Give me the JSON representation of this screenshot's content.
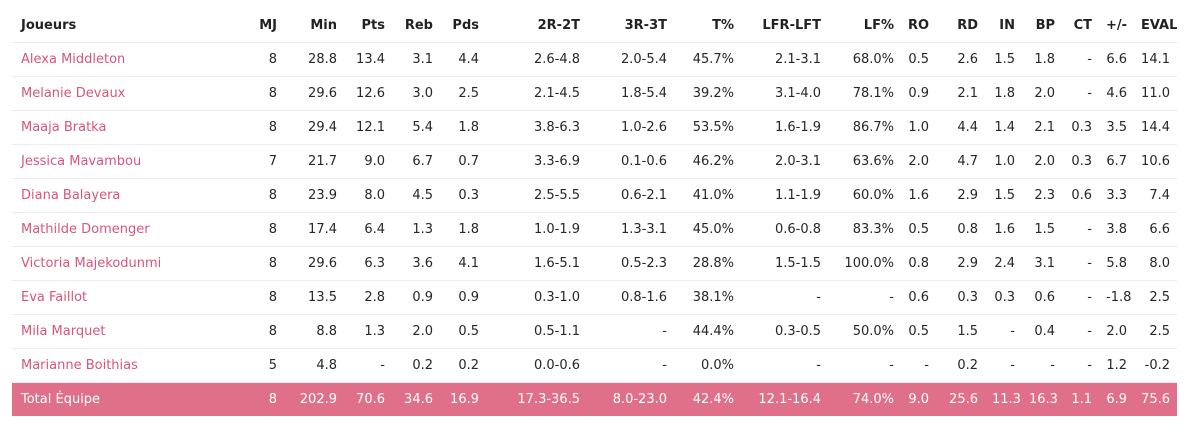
{
  "columns": [
    "Joueurs",
    "MJ",
    "Min",
    "Pts",
    "Reb",
    "Pds",
    "2R-2T",
    "3R-3T",
    "T%",
    "LFR-LFT",
    "LF%",
    "RO",
    "RD",
    "IN",
    "BP",
    "CT",
    "+/-",
    "EVAL"
  ],
  "rows": [
    [
      "Alexa Middleton",
      "8",
      "28.8",
      "13.4",
      "3.1",
      "4.4",
      "2.6-4.8",
      "2.0-5.4",
      "45.7%",
      "2.1-3.1",
      "68.0%",
      "0.5",
      "2.6",
      "1.5",
      "1.8",
      "-",
      "6.6",
      "14.1"
    ],
    [
      "Melanie Devaux",
      "8",
      "29.6",
      "12.6",
      "3.0",
      "2.5",
      "2.1-4.5",
      "1.8-5.4",
      "39.2%",
      "3.1-4.0",
      "78.1%",
      "0.9",
      "2.1",
      "1.8",
      "2.0",
      "-",
      "4.6",
      "11.0"
    ],
    [
      "Maaja Bratka",
      "8",
      "29.4",
      "12.1",
      "5.4",
      "1.8",
      "3.8-6.3",
      "1.0-2.6",
      "53.5%",
      "1.6-1.9",
      "86.7%",
      "1.0",
      "4.4",
      "1.4",
      "2.1",
      "0.3",
      "3.5",
      "14.4"
    ],
    [
      "Jessica Mavambou",
      "7",
      "21.7",
      "9.0",
      "6.7",
      "0.7",
      "3.3-6.9",
      "0.1-0.6",
      "46.2%",
      "2.0-3.1",
      "63.6%",
      "2.0",
      "4.7",
      "1.0",
      "2.0",
      "0.3",
      "6.7",
      "10.6"
    ],
    [
      "Diana Balayera",
      "8",
      "23.9",
      "8.0",
      "4.5",
      "0.3",
      "2.5-5.5",
      "0.6-2.1",
      "41.0%",
      "1.1-1.9",
      "60.0%",
      "1.6",
      "2.9",
      "1.5",
      "2.3",
      "0.6",
      "3.3",
      "7.4"
    ],
    [
      "Mathilde Domenger",
      "8",
      "17.4",
      "6.4",
      "1.3",
      "1.8",
      "1.0-1.9",
      "1.3-3.1",
      "45.0%",
      "0.6-0.8",
      "83.3%",
      "0.5",
      "0.8",
      "1.6",
      "1.5",
      "-",
      "3.8",
      "6.6"
    ],
    [
      "Victoria Majekodunmi",
      "8",
      "29.6",
      "6.3",
      "3.6",
      "4.1",
      "1.6-5.1",
      "0.5-2.3",
      "28.8%",
      "1.5-1.5",
      "100.0%",
      "0.8",
      "2.9",
      "2.4",
      "3.1",
      "-",
      "5.8",
      "8.0"
    ],
    [
      "Eva Faillot",
      "8",
      "13.5",
      "2.8",
      "0.9",
      "0.9",
      "0.3-1.0",
      "0.8-1.6",
      "38.1%",
      "-",
      "-",
      "0.6",
      "0.3",
      "0.3",
      "0.6",
      "-",
      "-1.8",
      "2.5"
    ],
    [
      "Mila Marquet",
      "8",
      "8.8",
      "1.3",
      "2.0",
      "0.5",
      "0.5-1.1",
      "-",
      "44.4%",
      "0.3-0.5",
      "50.0%",
      "0.5",
      "1.5",
      "-",
      "0.4",
      "-",
      "2.0",
      "2.5"
    ],
    [
      "Marianne Boithias",
      "5",
      "4.8",
      "-",
      "0.2",
      "0.2",
      "0.0-0.6",
      "-",
      "0.0%",
      "-",
      "-",
      "-",
      "0.2",
      "-",
      "-",
      "-",
      "1.2",
      "-0.2"
    ]
  ],
  "total": [
    "Total Équipe",
    "8",
    "202.9",
    "70.6",
    "34.6",
    "16.9",
    "17.3-36.5",
    "8.0-23.0",
    "42.4%",
    "12.1-16.4",
    "74.0%",
    "9.0",
    "25.6",
    "11.3",
    "16.3",
    "1.1",
    "6.9",
    "75.6"
  ],
  "colors": {
    "accent": "#e0708a",
    "player_link": "#d9557a"
  }
}
